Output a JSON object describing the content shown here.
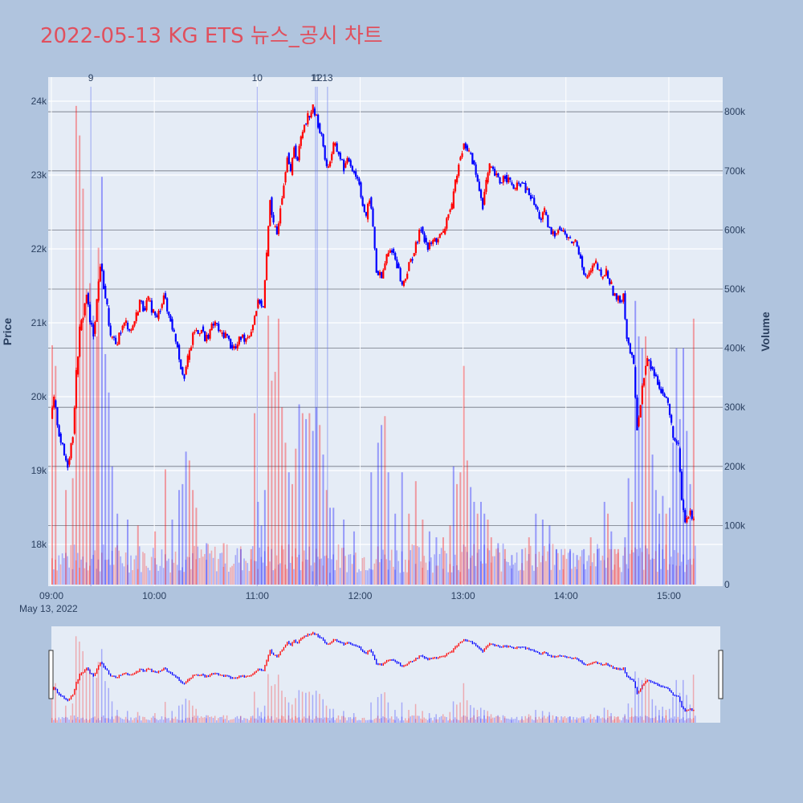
{
  "title": "2022-05-13 KG ETS 뉴스_공시 차트",
  "colors": {
    "up": "#ff0000",
    "down": "#0000ff",
    "plot_bg": "#e5ecf6",
    "page_bg": "#b0c4de",
    "title": "#e0505e"
  },
  "chart_data": {
    "type": "candlestick+volume",
    "title": "2022-05-13 KG ETS 뉴스_공시 차트",
    "ylabel": "Price",
    "y2label": "Volume",
    "ylim": [
      17450,
      24400
    ],
    "y2lim": [
      0,
      850000
    ],
    "xlim": [
      "09:00",
      "15:30"
    ],
    "x_date_label": "May 13, 2022",
    "x_ticks": [
      "09:00",
      "10:00",
      "11:00",
      "12:00",
      "13:00",
      "14:00",
      "15:00"
    ],
    "y_ticks": [
      "18k",
      "19k",
      "20k",
      "21k",
      "22k",
      "23k",
      "24k"
    ],
    "y_tick_values": [
      18000,
      19000,
      20000,
      21000,
      22000,
      23000,
      24000
    ],
    "y2_ticks": [
      "0",
      "100k",
      "200k",
      "300k",
      "400k",
      "500k",
      "600k",
      "700k",
      "800k"
    ],
    "y2_tick_values": [
      0,
      100000,
      200000,
      300000,
      400000,
      500000,
      600000,
      700000,
      800000
    ],
    "price_path": [
      [
        "09:00",
        19700
      ],
      [
        "09:02",
        19950
      ],
      [
        "09:05",
        19500
      ],
      [
        "09:08",
        19200
      ],
      [
        "09:10",
        19080
      ],
      [
        "09:13",
        19500
      ],
      [
        "09:15",
        20300
      ],
      [
        "09:17",
        20900
      ],
      [
        "09:19",
        21100
      ],
      [
        "09:21",
        21400
      ],
      [
        "09:23",
        21000
      ],
      [
        "09:25",
        20850
      ],
      [
        "09:27",
        21300
      ],
      [
        "09:29",
        21800
      ],
      [
        "09:31",
        21500
      ],
      [
        "09:33",
        21200
      ],
      [
        "09:35",
        20800
      ],
      [
        "09:38",
        20700
      ],
      [
        "09:41",
        20900
      ],
      [
        "09:44",
        21000
      ],
      [
        "09:47",
        20900
      ],
      [
        "09:50",
        21100
      ],
      [
        "09:52",
        21300
      ],
      [
        "09:54",
        21200
      ],
      [
        "09:57",
        21300
      ],
      [
        "10:00",
        21150
      ],
      [
        "10:02",
        21050
      ],
      [
        "10:04",
        21200
      ],
      [
        "10:06",
        21400
      ],
      [
        "10:08",
        21150
      ],
      [
        "10:10",
        21050
      ],
      [
        "10:12",
        20850
      ],
      [
        "10:14",
        20700
      ],
      [
        "10:16",
        20400
      ],
      [
        "10:18",
        20300
      ],
      [
        "10:20",
        20500
      ],
      [
        "10:22",
        20700
      ],
      [
        "10:24",
        20900
      ],
      [
        "10:26",
        20850
      ],
      [
        "10:28",
        20950
      ],
      [
        "10:30",
        20750
      ],
      [
        "10:33",
        20900
      ],
      [
        "10:36",
        21000
      ],
      [
        "10:39",
        20850
      ],
      [
        "10:42",
        20850
      ],
      [
        "10:45",
        20700
      ],
      [
        "10:48",
        20650
      ],
      [
        "10:51",
        20800
      ],
      [
        "10:54",
        20800
      ],
      [
        "10:57",
        20900
      ],
      [
        "11:00",
        21200
      ],
      [
        "11:02",
        21300
      ],
      [
        "11:04",
        21200
      ],
      [
        "11:06",
        21900
      ],
      [
        "11:08",
        22700
      ],
      [
        "11:10",
        22300
      ],
      [
        "11:12",
        22200
      ],
      [
        "11:14",
        22600
      ],
      [
        "11:16",
        22900
      ],
      [
        "11:18",
        23300
      ],
      [
        "11:20",
        23000
      ],
      [
        "11:22",
        23400
      ],
      [
        "11:24",
        23200
      ],
      [
        "11:26",
        23500
      ],
      [
        "11:28",
        23700
      ],
      [
        "11:30",
        23800
      ],
      [
        "11:33",
        23900
      ],
      [
        "11:36",
        23700
      ],
      [
        "11:39",
        23400
      ],
      [
        "11:41",
        23100
      ],
      [
        "11:43",
        23200
      ],
      [
        "11:45",
        23400
      ],
      [
        "11:48",
        23300
      ],
      [
        "11:51",
        23100
      ],
      [
        "11:54",
        23200
      ],
      [
        "11:57",
        23050
      ],
      [
        "12:00",
        22900
      ],
      [
        "12:02",
        22600
      ],
      [
        "12:04",
        22400
      ],
      [
        "12:06",
        22700
      ],
      [
        "12:08",
        22300
      ],
      [
        "12:10",
        21700
      ],
      [
        "12:13",
        21600
      ],
      [
        "12:16",
        21900
      ],
      [
        "12:19",
        22000
      ],
      [
        "12:22",
        21800
      ],
      [
        "12:25",
        21500
      ],
      [
        "12:28",
        21700
      ],
      [
        "12:31",
        21900
      ],
      [
        "12:34",
        22100
      ],
      [
        "12:36",
        22300
      ],
      [
        "12:38",
        22150
      ],
      [
        "12:40",
        22000
      ],
      [
        "12:43",
        22100
      ],
      [
        "12:46",
        22150
      ],
      [
        "12:49",
        22200
      ],
      [
        "12:52",
        22500
      ],
      [
        "12:54",
        22550
      ],
      [
        "12:56",
        22900
      ],
      [
        "12:58",
        23200
      ],
      [
        "13:00",
        23350
      ],
      [
        "13:02",
        23400
      ],
      [
        "13:04",
        23300
      ],
      [
        "13:06",
        23200
      ],
      [
        "13:08",
        23000
      ],
      [
        "13:10",
        22800
      ],
      [
        "13:12",
        22600
      ],
      [
        "13:14",
        22900
      ],
      [
        "13:16",
        23100
      ],
      [
        "13:19",
        23000
      ],
      [
        "13:22",
        22900
      ],
      [
        "13:25",
        23000
      ],
      [
        "13:28",
        22900
      ],
      [
        "13:31",
        22800
      ],
      [
        "13:34",
        22900
      ],
      [
        "13:37",
        22800
      ],
      [
        "13:40",
        22700
      ],
      [
        "13:42",
        22600
      ],
      [
        "13:44",
        22500
      ],
      [
        "13:46",
        22400
      ],
      [
        "13:48",
        22500
      ],
      [
        "13:50",
        22300
      ],
      [
        "13:52",
        22200
      ],
      [
        "13:54",
        22200
      ],
      [
        "13:56",
        22300
      ],
      [
        "14:00",
        22200
      ],
      [
        "14:03",
        22100
      ],
      [
        "14:06",
        22100
      ],
      [
        "14:09",
        21900
      ],
      [
        "14:12",
        21600
      ],
      [
        "14:15",
        21700
      ],
      [
        "14:18",
        21800
      ],
      [
        "14:21",
        21600
      ],
      [
        "14:24",
        21700
      ],
      [
        "14:27",
        21500
      ],
      [
        "14:30",
        21300
      ],
      [
        "14:32",
        21300
      ],
      [
        "14:34",
        21400
      ],
      [
        "14:36",
        20800
      ],
      [
        "14:38",
        20600
      ],
      [
        "14:40",
        20400
      ],
      [
        "14:42",
        19600
      ],
      [
        "14:44",
        19900
      ],
      [
        "14:46",
        20300
      ],
      [
        "14:48",
        20500
      ],
      [
        "14:50",
        20400
      ],
      [
        "14:52",
        20300
      ],
      [
        "14:54",
        20200
      ],
      [
        "14:56",
        20100
      ],
      [
        "14:58",
        20000
      ],
      [
        "15:00",
        19900
      ],
      [
        "15:02",
        19600
      ],
      [
        "15:04",
        19400
      ],
      [
        "15:06",
        19300
      ],
      [
        "15:08",
        18600
      ],
      [
        "15:10",
        18300
      ],
      [
        "15:12",
        18400
      ],
      [
        "15:15",
        18400
      ]
    ],
    "volume_spikes": [
      [
        "09:00",
        405000,
        "up"
      ],
      [
        "09:02",
        370000,
        "up"
      ],
      [
        "09:08",
        160000,
        "up"
      ],
      [
        "09:12",
        180000,
        "up"
      ],
      [
        "09:14",
        810000,
        "up"
      ],
      [
        "09:16",
        760000,
        "up"
      ],
      [
        "09:18",
        670000,
        "up"
      ],
      [
        "09:20",
        500000,
        "up"
      ],
      [
        "09:22",
        510000,
        "up"
      ],
      [
        "09:24",
        455000,
        "down"
      ],
      [
        "09:26",
        420000,
        "up"
      ],
      [
        "09:27",
        570000,
        "up"
      ],
      [
        "09:29",
        690000,
        "down"
      ],
      [
        "09:31",
        390000,
        "down"
      ],
      [
        "09:33",
        325000,
        "down"
      ],
      [
        "09:35",
        200000,
        "down"
      ],
      [
        "09:38",
        120000,
        "down"
      ],
      [
        "09:44",
        110000,
        "down"
      ],
      [
        "09:50",
        100000,
        "up"
      ],
      [
        "10:00",
        90000,
        "up"
      ],
      [
        "10:06",
        195000,
        "up"
      ],
      [
        "10:10",
        110000,
        "down"
      ],
      [
        "10:14",
        160000,
        "down"
      ],
      [
        "10:16",
        170000,
        "down"
      ],
      [
        "10:18",
        225000,
        "down"
      ],
      [
        "10:20",
        210000,
        "up"
      ],
      [
        "10:22",
        160000,
        "up"
      ],
      [
        "10:24",
        130000,
        "up"
      ],
      [
        "10:30",
        70000,
        "down"
      ],
      [
        "10:40",
        70000,
        "up"
      ],
      [
        "10:50",
        60000,
        "down"
      ],
      [
        "10:56",
        60000,
        "up"
      ],
      [
        "10:58",
        290000,
        "up"
      ],
      [
        "11:00",
        140000,
        "down"
      ],
      [
        "11:02",
        100000,
        "down"
      ],
      [
        "11:04",
        160000,
        "down"
      ],
      [
        "11:06",
        455000,
        "up"
      ],
      [
        "11:08",
        345000,
        "up"
      ],
      [
        "11:10",
        360000,
        "up"
      ],
      [
        "11:12",
        450000,
        "up"
      ],
      [
        "11:14",
        300000,
        "up"
      ],
      [
        "11:16",
        240000,
        "up"
      ],
      [
        "11:18",
        190000,
        "down"
      ],
      [
        "11:20",
        170000,
        "up"
      ],
      [
        "11:22",
        230000,
        "up"
      ],
      [
        "11:24",
        305000,
        "down"
      ],
      [
        "11:26",
        290000,
        "up"
      ],
      [
        "11:28",
        280000,
        "down"
      ],
      [
        "11:30",
        290000,
        "up"
      ],
      [
        "11:32",
        260000,
        "down"
      ],
      [
        "11:34",
        300000,
        "down"
      ],
      [
        "11:36",
        270000,
        "up"
      ],
      [
        "11:38",
        220000,
        "down"
      ],
      [
        "11:40",
        160000,
        "up"
      ],
      [
        "11:42",
        130000,
        "down"
      ],
      [
        "11:44",
        130000,
        "down"
      ],
      [
        "11:50",
        110000,
        "down"
      ],
      [
        "11:56",
        90000,
        "down"
      ],
      [
        "12:06",
        190000,
        "down"
      ],
      [
        "12:10",
        240000,
        "down"
      ],
      [
        "12:12",
        270000,
        "down"
      ],
      [
        "12:14",
        285000,
        "up"
      ],
      [
        "12:16",
        190000,
        "down"
      ],
      [
        "12:20",
        120000,
        "down"
      ],
      [
        "12:24",
        190000,
        "down"
      ],
      [
        "12:28",
        120000,
        "up"
      ],
      [
        "12:32",
        175000,
        "up"
      ],
      [
        "12:36",
        110000,
        "up"
      ],
      [
        "12:40",
        90000,
        "down"
      ],
      [
        "12:44",
        80000,
        "down"
      ],
      [
        "12:48",
        80000,
        "up"
      ],
      [
        "12:52",
        100000,
        "up"
      ],
      [
        "12:54",
        200000,
        "down"
      ],
      [
        "12:56",
        170000,
        "up"
      ],
      [
        "12:58",
        190000,
        "up"
      ],
      [
        "13:00",
        370000,
        "up"
      ],
      [
        "13:02",
        210000,
        "up"
      ],
      [
        "13:04",
        165000,
        "down"
      ],
      [
        "13:06",
        140000,
        "down"
      ],
      [
        "13:08",
        120000,
        "up"
      ],
      [
        "13:10",
        140000,
        "down"
      ],
      [
        "13:12",
        120000,
        "down"
      ],
      [
        "13:14",
        110000,
        "up"
      ],
      [
        "13:16",
        80000,
        "up"
      ],
      [
        "13:20",
        70000,
        "down"
      ],
      [
        "13:24",
        60000,
        "up"
      ],
      [
        "13:28",
        50000,
        "down"
      ],
      [
        "13:34",
        60000,
        "down"
      ],
      [
        "13:38",
        80000,
        "up"
      ],
      [
        "13:42",
        120000,
        "down"
      ],
      [
        "13:46",
        110000,
        "down"
      ],
      [
        "13:50",
        100000,
        "down"
      ],
      [
        "13:54",
        60000,
        "down"
      ],
      [
        "13:58",
        50000,
        "up"
      ],
      [
        "14:02",
        60000,
        "down"
      ],
      [
        "14:06",
        50000,
        "down"
      ],
      [
        "14:10",
        60000,
        "down"
      ],
      [
        "14:14",
        80000,
        "up"
      ],
      [
        "14:18",
        60000,
        "down"
      ],
      [
        "14:22",
        140000,
        "down"
      ],
      [
        "14:24",
        120000,
        "up"
      ],
      [
        "14:26",
        90000,
        "down"
      ],
      [
        "14:28",
        60000,
        "up"
      ],
      [
        "14:30",
        60000,
        "up"
      ],
      [
        "14:34",
        80000,
        "down"
      ],
      [
        "14:36",
        180000,
        "down"
      ],
      [
        "14:38",
        140000,
        "up"
      ],
      [
        "14:40",
        480000,
        "down"
      ],
      [
        "14:42",
        420000,
        "down"
      ],
      [
        "14:44",
        400000,
        "down"
      ],
      [
        "14:46",
        420000,
        "up"
      ],
      [
        "14:48",
        380000,
        "up"
      ],
      [
        "14:50",
        220000,
        "down"
      ],
      [
        "14:52",
        160000,
        "down"
      ],
      [
        "14:54",
        120000,
        "down"
      ],
      [
        "14:56",
        150000,
        "down"
      ],
      [
        "14:58",
        120000,
        "up"
      ],
      [
        "15:00",
        130000,
        "down"
      ],
      [
        "15:02",
        240000,
        "down"
      ],
      [
        "15:04",
        400000,
        "down"
      ],
      [
        "15:06",
        280000,
        "down"
      ],
      [
        "15:08",
        400000,
        "down"
      ],
      [
        "15:10",
        260000,
        "down"
      ],
      [
        "15:12",
        170000,
        "down"
      ],
      [
        "15:14",
        450000,
        "up"
      ]
    ],
    "news_markers": [
      {
        "time": "09:23",
        "label": "9"
      },
      {
        "time": "11:00",
        "label": "10"
      },
      {
        "time": "11:34",
        "label": "11"
      },
      {
        "time": "11:35",
        "label": "12"
      },
      {
        "time": "11:41",
        "label": "13"
      }
    ],
    "grid": true,
    "range_slider": true
  }
}
